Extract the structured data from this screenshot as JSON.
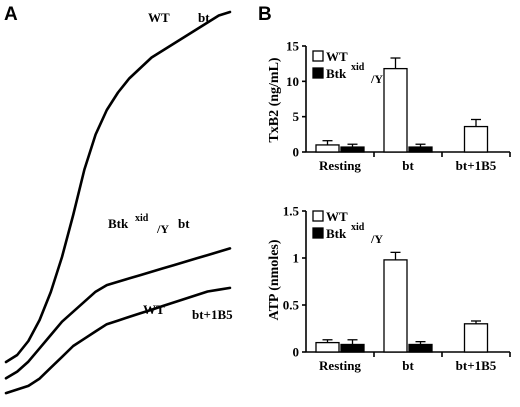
{
  "panel_a": {
    "letter": "A",
    "labels": [
      {
        "genotype": "WT",
        "agonist": "bt"
      },
      {
        "genotype": "Btk",
        "sup": "xid",
        "sub": "/Y",
        "agonist": "bt"
      },
      {
        "genotype": "WT",
        "agonist": "bt+1B5"
      }
    ]
  },
  "panel_b": {
    "letter": "B",
    "legend": [
      {
        "label": "WT",
        "fill": "#ffffff"
      },
      {
        "label": "Btk",
        "sup": "xid",
        "sub": "/Y",
        "fill": "#000000"
      }
    ]
  },
  "chart_data": [
    {
      "type": "line",
      "panel": "A",
      "title": "",
      "xlabel": "",
      "ylabel": "",
      "grid": false,
      "series": [
        {
          "name": "WT bt",
          "x": [
            0,
            0.05,
            0.1,
            0.15,
            0.2,
            0.25,
            0.3,
            0.35,
            0.4,
            0.45,
            0.5,
            0.55,
            0.6,
            0.65,
            0.7,
            0.75,
            0.8,
            0.85,
            0.9,
            0.95,
            1.0
          ],
          "y": [
            0,
            0.02,
            0.06,
            0.12,
            0.2,
            0.3,
            0.42,
            0.55,
            0.65,
            0.72,
            0.77,
            0.81,
            0.84,
            0.87,
            0.89,
            0.91,
            0.93,
            0.95,
            0.97,
            0.99,
            1.0
          ]
        },
        {
          "name": "Btk xid/Y bt",
          "x": [
            0,
            0.05,
            0.1,
            0.15,
            0.2,
            0.25,
            0.3,
            0.35,
            0.4,
            0.45,
            0.5,
            0.55,
            0.6,
            0.65,
            0.7,
            0.75,
            0.8,
            0.85,
            0.9,
            0.95,
            1.0
          ],
          "y": [
            -0.1,
            -0.08,
            -0.05,
            -0.01,
            0.03,
            0.07,
            0.1,
            0.13,
            0.16,
            0.18,
            0.19,
            0.2,
            0.21,
            0.22,
            0.23,
            0.24,
            0.25,
            0.26,
            0.27,
            0.28,
            0.29
          ]
        },
        {
          "name": "WT bt+1B5",
          "x": [
            0,
            0.05,
            0.1,
            0.15,
            0.2,
            0.25,
            0.3,
            0.35,
            0.4,
            0.45,
            0.5,
            0.55,
            0.6,
            0.65,
            0.7,
            0.75,
            0.8,
            0.85,
            0.9,
            0.95,
            1.0
          ],
          "y": [
            -0.05,
            -0.04,
            -0.03,
            -0.01,
            0.02,
            0.05,
            0.08,
            0.1,
            0.12,
            0.14,
            0.15,
            0.16,
            0.17,
            0.18,
            0.19,
            0.2,
            0.21,
            0.22,
            0.23,
            0.235,
            0.24
          ]
        }
      ]
    },
    {
      "type": "bar",
      "panel": "B-top",
      "ylabel": "TxB2 (ng/mL)",
      "ylim": [
        0,
        15
      ],
      "yticks": [
        "0",
        "5",
        "10",
        "15"
      ],
      "categories": [
        "Resting",
        "bt",
        "bt+1B5"
      ],
      "series": [
        {
          "name": "WT",
          "values": [
            1.0,
            11.8,
            3.6
          ],
          "errors": [
            0.6,
            1.5,
            1.0
          ]
        },
        {
          "name": "Btk xid/Y",
          "values": [
            0.7,
            0.7,
            null
          ],
          "errors": [
            0.4,
            0.4,
            null
          ]
        }
      ]
    },
    {
      "type": "bar",
      "panel": "B-bottom",
      "ylabel": "ATP (nmoles)",
      "ylim": [
        0,
        1.5
      ],
      "yticks": [
        "0",
        "0.5",
        "1",
        "1.5"
      ],
      "categories": [
        "Resting",
        "bt",
        "bt+1B5"
      ],
      "series": [
        {
          "name": "WT",
          "values": [
            0.1,
            0.98,
            0.3
          ],
          "errors": [
            0.03,
            0.08,
            0.03
          ]
        },
        {
          "name": "Btk xid/Y",
          "values": [
            0.08,
            0.08,
            null
          ],
          "errors": [
            0.05,
            0.03,
            null
          ]
        }
      ]
    }
  ]
}
